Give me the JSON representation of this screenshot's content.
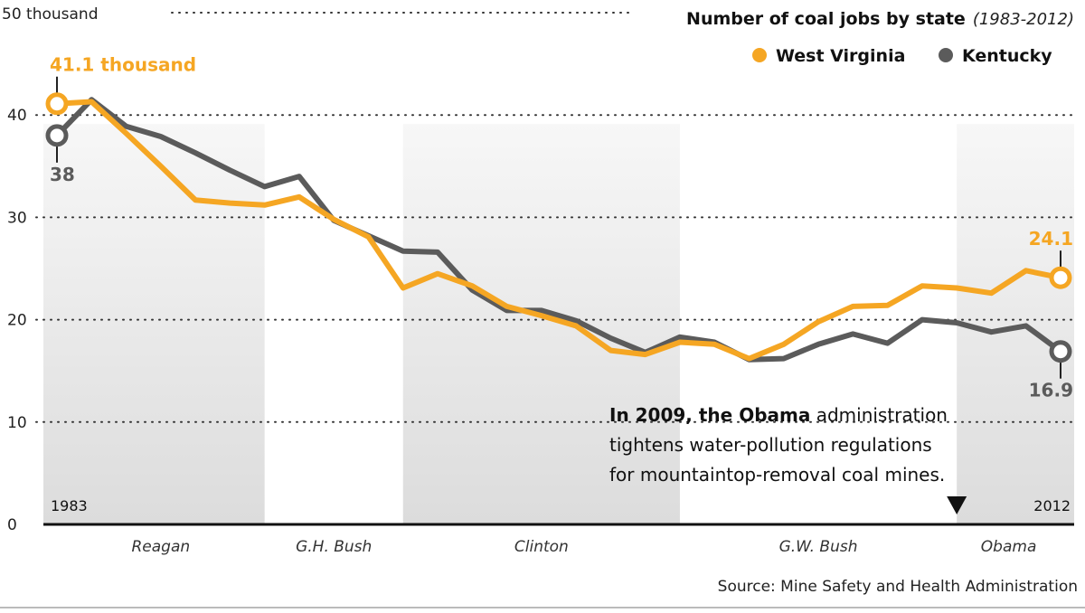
{
  "chart_data": {
    "type": "line",
    "title": "Number of coal jobs by state",
    "subtitle": "(1983-2012)",
    "y_unit_label": "50 thousand",
    "ylim": [
      0,
      50
    ],
    "yticks": [
      {
        "value": 0,
        "label": "0"
      },
      {
        "value": 10,
        "label": "10"
      },
      {
        "value": 20,
        "label": "20"
      },
      {
        "value": 30,
        "label": "30"
      },
      {
        "value": 40,
        "label": "40"
      }
    ],
    "x": [
      1983,
      1984,
      1985,
      1986,
      1987,
      1988,
      1989,
      1990,
      1991,
      1992,
      1993,
      1994,
      1995,
      1996,
      1997,
      1998,
      1999,
      2000,
      2001,
      2002,
      2003,
      2004,
      2005,
      2006,
      2007,
      2008,
      2009,
      2010,
      2011,
      2012
    ],
    "x_start_label": "1983",
    "x_end_label": "2012",
    "grid": "horizontal dotted",
    "legend_position": "top-right",
    "series": [
      {
        "name": "West Virginia",
        "color": "#f5a623",
        "values": [
          41.1,
          41.3,
          38.2,
          35.0,
          31.7,
          31.4,
          31.2,
          32.0,
          29.8,
          28.1,
          23.1,
          24.5,
          23.3,
          21.3,
          20.4,
          19.4,
          17.0,
          16.6,
          17.8,
          17.6,
          16.2,
          17.6,
          19.8,
          21.3,
          21.4,
          23.3,
          23.1,
          22.6,
          24.8,
          24.1
        ],
        "start_callout": "41.1 thousand",
        "end_callout": "24.1"
      },
      {
        "name": "Kentucky",
        "color": "#5b5b5b",
        "values": [
          38.0,
          41.5,
          38.9,
          37.9,
          36.3,
          34.6,
          33.0,
          34.0,
          29.7,
          28.2,
          26.7,
          26.6,
          22.9,
          20.9,
          20.9,
          19.9,
          18.2,
          16.8,
          18.3,
          17.8,
          16.1,
          16.2,
          17.6,
          18.6,
          17.7,
          20.0,
          19.7,
          18.8,
          19.4,
          16.9
        ],
        "start_callout": "38",
        "end_callout": "16.9"
      }
    ],
    "administrations": [
      {
        "name": "Reagan",
        "start": 1983,
        "end": 1989,
        "shaded": true
      },
      {
        "name": "G.H. Bush",
        "start": 1989,
        "end": 1993,
        "shaded": false
      },
      {
        "name": "Clinton",
        "start": 1993,
        "end": 2001,
        "shaded": true
      },
      {
        "name": "G.W. Bush",
        "start": 2001,
        "end": 2009,
        "shaded": false
      },
      {
        "name": "Obama",
        "start": 2009,
        "end": 2012,
        "shaded": true
      }
    ],
    "annotation": {
      "bold": "In 2009, the Obama",
      "line1_rest": " administration",
      "line2": "tightens water-pollution regulations",
      "line3": "for mountaintop-removal coal mines.",
      "marker_year": 2009
    },
    "source": "Source: Mine Safety and Health Administration"
  }
}
